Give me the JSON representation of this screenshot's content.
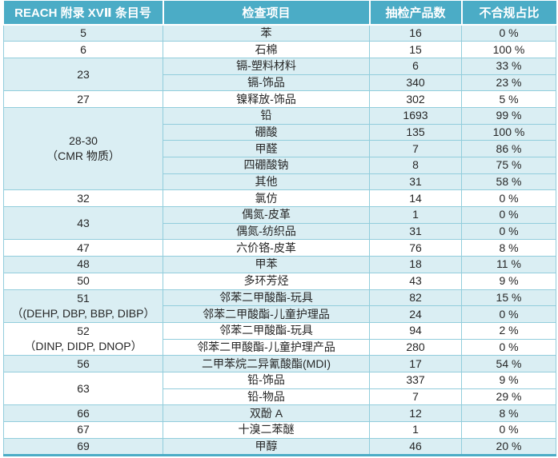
{
  "colors": {
    "header_bg": "#4BACC6",
    "header_text": "#FFFFFF",
    "band_light": "#DAEEF3",
    "band_white": "#FFFFFF",
    "border": "#92CDDC",
    "bottom_border": "#4BACC6",
    "text": "#262626"
  },
  "table": {
    "headers": [
      "REACH 附录 XVⅡ 条目号",
      "检查项目",
      "抽检产品数",
      "不合规占比"
    ],
    "groups": [
      {
        "entry": "5",
        "note": "",
        "band": "light",
        "rows": [
          {
            "item": "苯",
            "count": "16",
            "rate": "0 %"
          }
        ]
      },
      {
        "entry": "6",
        "note": "",
        "band": "white",
        "rows": [
          {
            "item": "石棉",
            "count": "15",
            "rate": "100 %"
          }
        ]
      },
      {
        "entry": "23",
        "note": "",
        "band": "light",
        "rows": [
          {
            "item": "镉-塑料材料",
            "count": "6",
            "rate": "33 %"
          },
          {
            "item": "镉-饰品",
            "count": "340",
            "rate": "23 %"
          }
        ]
      },
      {
        "entry": "27",
        "note": "",
        "band": "white",
        "rows": [
          {
            "item": "镍释放-饰品",
            "count": "302",
            "rate": "5 %"
          }
        ]
      },
      {
        "entry": "28-30",
        "note": "（CMR 物质）",
        "band": "light",
        "rows": [
          {
            "item": "铅",
            "count": "1693",
            "rate": "99 %"
          },
          {
            "item": "硼酸",
            "count": "135",
            "rate": "100 %"
          },
          {
            "item": "甲醛",
            "count": "7",
            "rate": "86 %"
          },
          {
            "item": "四硼酸钠",
            "count": "8",
            "rate": "75 %"
          },
          {
            "item": "其他",
            "count": "31",
            "rate": "58 %"
          }
        ]
      },
      {
        "entry": "32",
        "note": "",
        "band": "white",
        "rows": [
          {
            "item": "氯仿",
            "count": "14",
            "rate": "0 %"
          }
        ]
      },
      {
        "entry": "43",
        "note": "",
        "band": "light",
        "rows": [
          {
            "item": "偶氮-皮革",
            "count": "1",
            "rate": "0 %"
          },
          {
            "item": "偶氮-纺织品",
            "count": "31",
            "rate": "0 %"
          }
        ]
      },
      {
        "entry": "47",
        "note": "",
        "band": "white",
        "rows": [
          {
            "item": "六价铬-皮革",
            "count": "76",
            "rate": "8 %"
          }
        ]
      },
      {
        "entry": "48",
        "note": "",
        "band": "light",
        "rows": [
          {
            "item": "甲苯",
            "count": "18",
            "rate": "11 %"
          }
        ]
      },
      {
        "entry": "50",
        "note": "",
        "band": "white",
        "rows": [
          {
            "item": "多环芳烃",
            "count": "43",
            "rate": "9 %"
          }
        ]
      },
      {
        "entry": "51",
        "note": "（(DEHP, DBP, BBP, DIBP）",
        "band": "light",
        "rows": [
          {
            "item": "邻苯二甲酸酯-玩具",
            "count": "82",
            "rate": "15 %"
          },
          {
            "item": "邻苯二甲酸酯-儿童护理品",
            "count": "24",
            "rate": "0 %"
          }
        ]
      },
      {
        "entry": "52",
        "note": "（DINP, DIDP, DNOP）",
        "band": "white",
        "rows": [
          {
            "item": "邻苯二甲酸酯-玩具",
            "count": "94",
            "rate": "2 %"
          },
          {
            "item": "邻苯二甲酸酯-儿童护理产品",
            "count": "280",
            "rate": "0 %"
          }
        ]
      },
      {
        "entry": "56",
        "note": "",
        "band": "light",
        "rows": [
          {
            "item": "二甲苯烷二异氰酸酯(MDI)",
            "count": "17",
            "rate": "54 %"
          }
        ]
      },
      {
        "entry": "63",
        "note": "",
        "band": "white",
        "rows": [
          {
            "item": "铅-饰品",
            "count": "337",
            "rate": "9 %"
          },
          {
            "item": "铅-物品",
            "count": "7",
            "rate": "29 %"
          }
        ]
      },
      {
        "entry": "66",
        "note": "",
        "band": "light",
        "rows": [
          {
            "item": "双酚 A",
            "count": "12",
            "rate": "8 %"
          }
        ]
      },
      {
        "entry": "67",
        "note": "",
        "band": "white",
        "rows": [
          {
            "item": "十溴二苯醚",
            "count": "1",
            "rate": "0 %"
          }
        ]
      },
      {
        "entry": "69",
        "note": "",
        "band": "light",
        "rows": [
          {
            "item": "甲醇",
            "count": "46",
            "rate": "20 %"
          }
        ]
      }
    ]
  }
}
